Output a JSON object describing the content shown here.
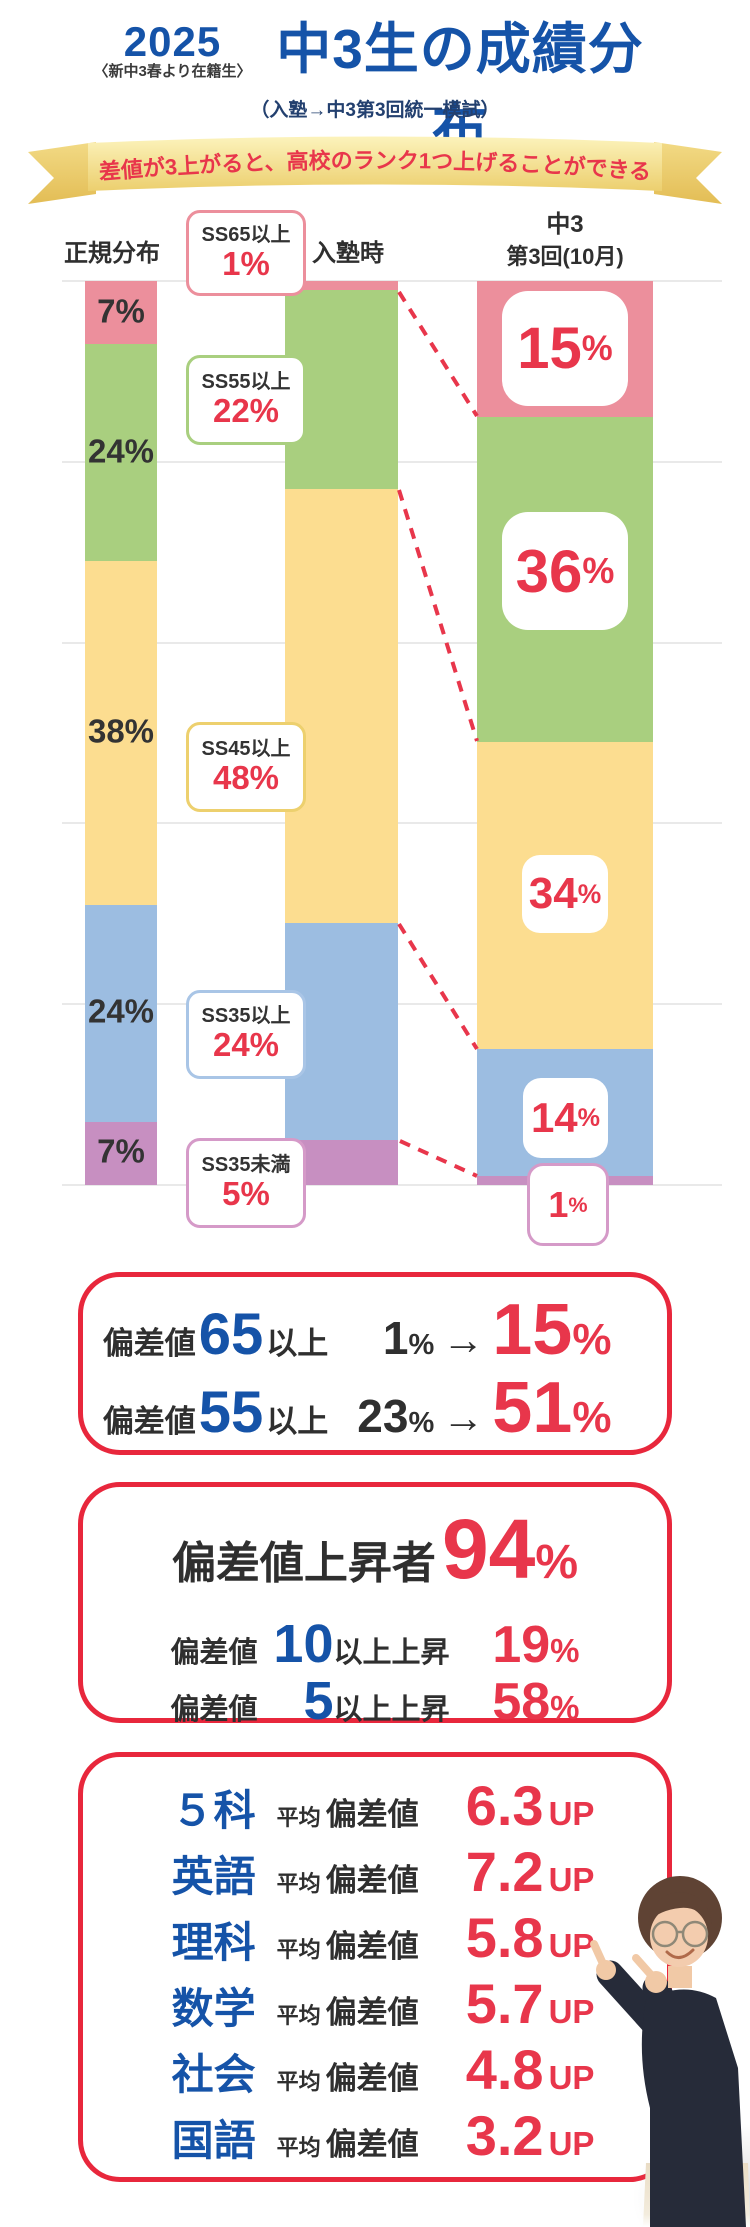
{
  "header": {
    "year": "2025",
    "note": "〈新中3春より在籍生〉",
    "title": "中3生の成績分布",
    "subtitle": "（入塾→中3第3回統一模試）"
  },
  "banner": {
    "text": "偏差値が3上がると、高校のランク1つ上げることができる！"
  },
  "chart_data": {
    "type": "bar",
    "stacked": true,
    "unit": "%",
    "title": "中3生の成績分布（入塾→中3第3回統一模試）",
    "categories": [
      "正規分布",
      "入塾時",
      "中3 第3回(10月)"
    ],
    "series": [
      {
        "name": "SS65以上",
        "color": "#ec8f9c",
        "values": [
          7,
          1,
          15
        ]
      },
      {
        "name": "SS55以上",
        "color": "#a9cf7f",
        "values": [
          24,
          22,
          36
        ]
      },
      {
        "name": "SS45以上",
        "color": "#fcdd90",
        "values": [
          38,
          48,
          34
        ]
      },
      {
        "name": "SS35以上",
        "color": "#9cbde1",
        "values": [
          24,
          24,
          14
        ]
      },
      {
        "name": "SS35未満",
        "color": "#c78fc1",
        "values": [
          7,
          5,
          1
        ]
      }
    ],
    "ylim": [
      0,
      100
    ],
    "gridline_step": 20,
    "grid": true,
    "legend_position": "none",
    "connector_style": "red-dashed"
  },
  "chart": {
    "columns": [
      {
        "label": "正規分布"
      },
      {
        "label": "入塾時"
      },
      {
        "label_line1": "中3",
        "label_line2": "第3回(10月)"
      }
    ],
    "normal_labels": [
      "7%",
      "24%",
      "38%",
      "24%",
      "7%"
    ],
    "enroll_boxes": [
      {
        "band": "SS65以上",
        "value": "1%"
      },
      {
        "band": "SS55以上",
        "value": "22%"
      },
      {
        "band": "SS45以上",
        "value": "48%"
      },
      {
        "band": "SS35以上",
        "value": "24%"
      },
      {
        "band": "SS35未満",
        "value": "5%"
      }
    ],
    "third_labels": [
      {
        "num": "15",
        "pct": "%"
      },
      {
        "num": "36",
        "pct": "%"
      },
      {
        "num": "34",
        "pct": "%"
      },
      {
        "num": "14",
        "pct": "%"
      },
      {
        "num": "1",
        "pct": "%"
      }
    ]
  },
  "summary1": {
    "rows": [
      {
        "prefix": "偏差値",
        "num": "65",
        "suffix": "以上",
        "before_num": "1",
        "before_pct": "%",
        "arrow": "→",
        "after_num": "15",
        "after_pct": "%"
      },
      {
        "prefix": "偏差値",
        "num": "55",
        "suffix": "以上",
        "before_num": "23",
        "before_pct": "%",
        "arrow": "→",
        "after_num": "51",
        "after_pct": "%"
      }
    ]
  },
  "summary2": {
    "headline_label": "偏差値上昇者",
    "headline_num": "94",
    "headline_pct": "%",
    "rows": [
      {
        "prefix": "偏差値",
        "num": "10",
        "suffix": "以上上昇",
        "value_num": "19",
        "value_pct": "%"
      },
      {
        "prefix": "偏差値",
        "num": "5",
        "suffix": "以上上昇",
        "value_num": "58",
        "value_pct": "%"
      }
    ]
  },
  "subjects": {
    "avg_label": "平均",
    "dev_label": "偏差値",
    "up_label": "UP",
    "rows": [
      {
        "subject": "５科",
        "value": "6.3"
      },
      {
        "subject": "英語",
        "value": "7.2"
      },
      {
        "subject": "理科",
        "value": "5.8"
      },
      {
        "subject": "数学",
        "value": "5.7"
      },
      {
        "subject": "社会",
        "value": "4.8"
      },
      {
        "subject": "国語",
        "value": "3.2"
      }
    ]
  },
  "colors": {
    "accent_red": "#e8364b",
    "navy_blue": "#1553a8",
    "box_border_red": "#e8273c",
    "text_dark": "#2f2f2f",
    "gridline": "#e9e9e9",
    "ribbon_gold": "#eccf6e"
  }
}
